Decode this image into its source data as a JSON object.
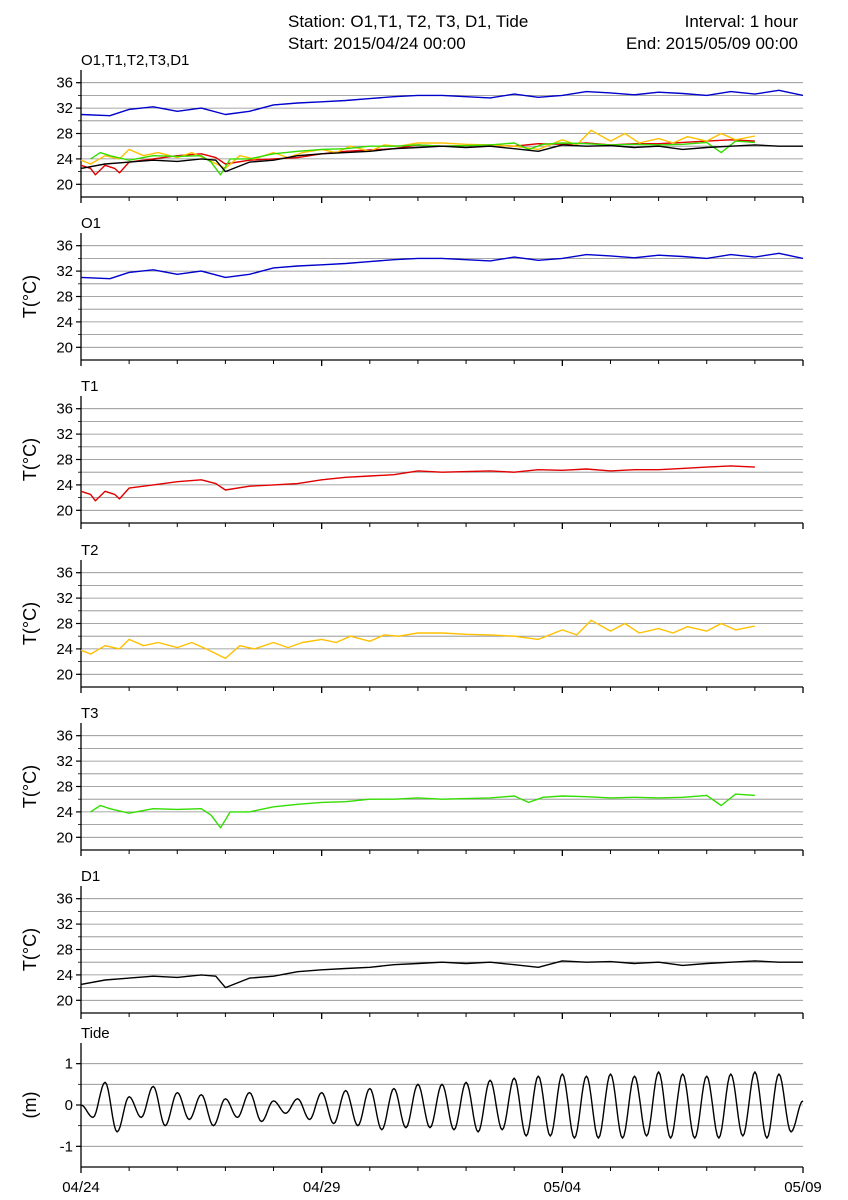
{
  "header": {
    "station": "Station: O1,T1, T2, T3, D1, Tide",
    "interval": "Interval: 1 hour",
    "start": "Start: 2015/04/24 00:00",
    "end": "End: 2015/05/09 00:00"
  },
  "chart_data": {
    "type": "line",
    "x_range": [
      "2015-04-24 00:00",
      "2015-05-09 00:00"
    ],
    "x_ticks": [
      "04/24",
      "04/29",
      "05/04",
      "05/09"
    ],
    "panels": [
      {
        "title": "O1,T1,T2,T3,D1",
        "ylabel": "",
        "ylim": [
          18,
          38
        ],
        "yticks": [
          20,
          24,
          28,
          32,
          36
        ],
        "grid": true,
        "series": [
          {
            "name": "O1",
            "color": "#0000cc",
            "ref": "O1"
          },
          {
            "name": "T1",
            "color": "#e00000",
            "ref": "T1"
          },
          {
            "name": "T2",
            "color": "#ffc000",
            "ref": "T2"
          },
          {
            "name": "T3",
            "color": "#33dd00",
            "ref": "T3"
          },
          {
            "name": "D1",
            "color": "#000000",
            "ref": "D1"
          }
        ]
      },
      {
        "title": "O1",
        "ylabel": "T(°C)",
        "ylim": [
          18,
          38
        ],
        "yticks": [
          20,
          24,
          28,
          32,
          36
        ],
        "grid": true,
        "series": [
          {
            "name": "O1",
            "color": "#0000cc",
            "x": [
              0,
              0.6,
              1,
              1.5,
              2,
              2.5,
              3,
              3.5,
              4,
              4.5,
              5,
              5.5,
              6,
              6.5,
              7,
              7.5,
              8,
              8.5,
              9,
              9.5,
              10,
              10.5,
              11,
              11.5,
              12,
              12.5,
              13,
              13.5,
              14,
              14.5,
              15
            ],
            "values": [
              31.0,
              30.8,
              31.8,
              32.2,
              31.5,
              32.0,
              31.0,
              31.5,
              32.5,
              32.8,
              33.0,
              33.2,
              33.5,
              33.8,
              34.0,
              34.0,
              33.8,
              33.6,
              34.2,
              33.7,
              34.0,
              34.6,
              34.4,
              34.1,
              34.5,
              34.3,
              34.0,
              34.6,
              34.2,
              34.8,
              34.0
            ]
          }
        ]
      },
      {
        "title": "T1",
        "ylabel": "T(°C)",
        "ylim": [
          18,
          38
        ],
        "yticks": [
          20,
          24,
          28,
          32,
          36
        ],
        "grid": true,
        "series": [
          {
            "name": "T1",
            "color": "#e00000",
            "x": [
              0,
              0.2,
              0.3,
              0.5,
              0.7,
              0.8,
              1,
              1.5,
              2,
              2.5,
              2.8,
              3,
              3.5,
              4,
              4.5,
              5,
              5.5,
              6,
              6.5,
              7,
              7.5,
              8,
              8.5,
              9,
              9.5,
              10,
              10.5,
              11,
              11.5,
              12,
              12.5,
              13,
              13.5,
              14
            ],
            "values": [
              23.0,
              22.5,
              21.5,
              23.0,
              22.5,
              21.8,
              23.5,
              24.0,
              24.5,
              24.8,
              24.2,
              23.2,
              23.8,
              24.0,
              24.2,
              24.8,
              25.2,
              25.4,
              25.6,
              26.2,
              26.0,
              26.1,
              26.2,
              26.0,
              26.4,
              26.3,
              26.5,
              26.2,
              26.4,
              26.4,
              26.6,
              26.8,
              27.0,
              26.8
            ]
          }
        ]
      },
      {
        "title": "T2",
        "ylabel": "T(°C)",
        "ylim": [
          18,
          38
        ],
        "yticks": [
          20,
          24,
          28,
          32,
          36
        ],
        "grid": true,
        "series": [
          {
            "name": "T2",
            "color": "#ffc000",
            "x": [
              0,
              0.2,
              0.5,
              0.8,
              1,
              1.3,
              1.6,
              2,
              2.3,
              2.6,
              3,
              3.3,
              3.6,
              4,
              4.3,
              4.6,
              5,
              5.3,
              5.6,
              6,
              6.3,
              6.6,
              7,
              7.5,
              8,
              8.5,
              9,
              9.5,
              10,
              10.3,
              10.6,
              11,
              11.3,
              11.6,
              12,
              12.3,
              12.6,
              13,
              13.3,
              13.6,
              14
            ],
            "values": [
              23.8,
              23.2,
              24.5,
              24.0,
              25.5,
              24.5,
              25.0,
              24.2,
              25.0,
              24.0,
              22.5,
              24.5,
              24.0,
              25.0,
              24.2,
              25.0,
              25.5,
              25.0,
              26.0,
              25.2,
              26.2,
              26.0,
              26.5,
              26.5,
              26.3,
              26.2,
              26.0,
              25.5,
              27.0,
              26.2,
              28.5,
              26.8,
              28.0,
              26.5,
              27.2,
              26.5,
              27.5,
              26.8,
              28.0,
              27.0,
              27.6
            ]
          }
        ]
      },
      {
        "title": "T3",
        "ylabel": "T(°C)",
        "ylim": [
          18,
          38
        ],
        "yticks": [
          20,
          24,
          28,
          32,
          36
        ],
        "grid": true,
        "series": [
          {
            "name": "T3",
            "color": "#33dd00",
            "x": [
              0.2,
              0.4,
              0.6,
              1,
              1.5,
              2,
              2.5,
              2.7,
              2.9,
              3.1,
              3.5,
              4,
              4.5,
              5,
              5.5,
              6,
              6.5,
              7,
              7.5,
              8,
              8.5,
              9,
              9.3,
              9.6,
              10,
              10.5,
              11,
              11.5,
              12,
              12.5,
              13,
              13.3,
              13.6,
              14
            ],
            "values": [
              24.0,
              25.0,
              24.5,
              23.8,
              24.5,
              24.4,
              24.5,
              23.5,
              21.5,
              24.0,
              24.0,
              24.8,
              25.2,
              25.5,
              25.6,
              26.0,
              26.0,
              26.2,
              26.0,
              26.1,
              26.2,
              26.5,
              25.5,
              26.3,
              26.5,
              26.4,
              26.2,
              26.3,
              26.2,
              26.3,
              26.6,
              25.0,
              26.8,
              26.6
            ]
          }
        ]
      },
      {
        "title": "D1",
        "ylabel": "T(°C)",
        "ylim": [
          18,
          38
        ],
        "yticks": [
          20,
          24,
          28,
          32,
          36
        ],
        "grid": true,
        "series": [
          {
            "name": "D1",
            "color": "#000000",
            "x": [
              0,
              0.5,
              1,
              1.5,
              2,
              2.5,
              2.8,
              3,
              3.5,
              4,
              4.5,
              5,
              5.5,
              6,
              6.5,
              7,
              7.5,
              8,
              8.5,
              9,
              9.5,
              10,
              10.5,
              11,
              11.5,
              12,
              12.5,
              13,
              13.5,
              14,
              14.5,
              15
            ],
            "values": [
              22.5,
              23.2,
              23.5,
              23.8,
              23.6,
              24.0,
              23.8,
              22.0,
              23.5,
              23.8,
              24.5,
              24.8,
              25.0,
              25.2,
              25.6,
              25.8,
              26.0,
              25.8,
              26.0,
              25.6,
              25.2,
              26.2,
              26.0,
              26.1,
              25.8,
              26.0,
              25.5,
              25.8,
              26.0,
              26.2,
              26.0,
              26.0
            ]
          }
        ]
      },
      {
        "title": "Tide",
        "ylabel": "(m)",
        "ylim": [
          -1.5,
          1.5
        ],
        "yticks": [
          -1,
          0,
          1
        ],
        "grid": true,
        "series": [
          {
            "name": "Tide",
            "color": "#000000",
            "x": [
              0,
              0.25,
              0.5,
              0.75,
              1,
              1.25,
              1.5,
              1.75,
              2,
              2.25,
              2.5,
              2.75,
              3,
              3.25,
              3.5,
              3.75,
              4,
              4.25,
              4.5,
              4.75,
              5,
              5.25,
              5.5,
              5.75,
              6,
              6.25,
              6.5,
              6.75,
              7,
              7.25,
              7.5,
              7.75,
              8,
              8.25,
              8.5,
              8.75,
              9,
              9.25,
              9.5,
              9.75,
              10,
              10.25,
              10.5,
              10.75,
              11,
              11.25,
              11.5,
              11.75,
              12,
              12.25,
              12.5,
              12.75,
              13,
              13.25,
              13.5,
              13.75,
              14,
              14.25,
              14.5,
              14.75,
              15
            ],
            "values": [
              0.0,
              -0.3,
              0.55,
              -0.65,
              0.2,
              -0.3,
              0.45,
              -0.5,
              0.3,
              -0.35,
              0.25,
              -0.5,
              0.15,
              -0.3,
              0.3,
              -0.4,
              0.1,
              -0.2,
              0.15,
              -0.35,
              0.3,
              -0.45,
              0.35,
              -0.5,
              0.4,
              -0.6,
              0.4,
              -0.55,
              0.5,
              -0.55,
              0.5,
              -0.6,
              0.55,
              -0.65,
              0.6,
              -0.6,
              0.65,
              -0.75,
              0.7,
              -0.75,
              0.75,
              -0.8,
              0.7,
              -0.8,
              0.75,
              -0.8,
              0.7,
              -0.75,
              0.8,
              -0.8,
              0.75,
              -0.8,
              0.7,
              -0.8,
              0.75,
              -0.75,
              0.8,
              -0.8,
              0.75,
              -0.65,
              0.1
            ]
          }
        ]
      }
    ]
  }
}
